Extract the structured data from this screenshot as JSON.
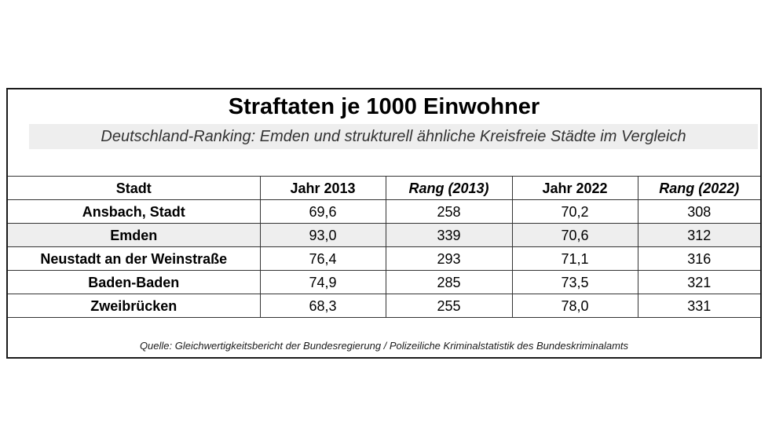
{
  "title": "Straftaten je 1000 Einwohner",
  "subtitle": "Deutschland-Ranking: Emden und strukturell ähnliche Kreisfreie Städte im Vergleich",
  "table": {
    "headers": [
      "Stadt",
      "Jahr 2013",
      "Rang (2013)",
      "Jahr 2022",
      "Rang (2022)"
    ],
    "rows": [
      [
        "Ansbach, Stadt",
        "69,6",
        "258",
        "70,2",
        "308"
      ],
      [
        "Emden",
        "93,0",
        "339",
        "70,6",
        "312"
      ],
      [
        "Neustadt an der Weinstraße",
        "76,4",
        "293",
        "71,1",
        "316"
      ],
      [
        "Baden-Baden",
        "74,9",
        "285",
        "73,5",
        "321"
      ],
      [
        "Zweibrücken",
        "68,3",
        "255",
        "78,0",
        "331"
      ]
    ],
    "highlighted_row": "Emden",
    "highlight_color": "#eeeeee"
  },
  "source": "Quelle: Gleichwertigkeitsbericht der Bundesregierung / Polizeiliche Kriminalstatistik des Bundeskriminalamts",
  "chart_data": {
    "type": "table",
    "title": "Straftaten je 1000 Einwohner",
    "subtitle": "Deutschland-Ranking: Emden und strukturell ähnliche Kreisfreie Städte im Vergleich",
    "columns": [
      "Stadt",
      "Jahr 2013",
      "Rang (2013)",
      "Jahr 2022",
      "Rang (2022)"
    ],
    "categories": [
      "Ansbach, Stadt",
      "Emden",
      "Neustadt an der Weinstraße",
      "Baden-Baden",
      "Zweibrücken"
    ],
    "series": [
      {
        "name": "Jahr 2013",
        "values": [
          69.6,
          93.0,
          76.4,
          74.9,
          68.3
        ]
      },
      {
        "name": "Rang (2013)",
        "values": [
          258,
          339,
          293,
          285,
          255
        ]
      },
      {
        "name": "Jahr 2022",
        "values": [
          70.2,
          70.6,
          71.1,
          73.5,
          78.0
        ]
      },
      {
        "name": "Rang (2022)",
        "values": [
          308,
          312,
          316,
          321,
          331
        ]
      }
    ]
  }
}
